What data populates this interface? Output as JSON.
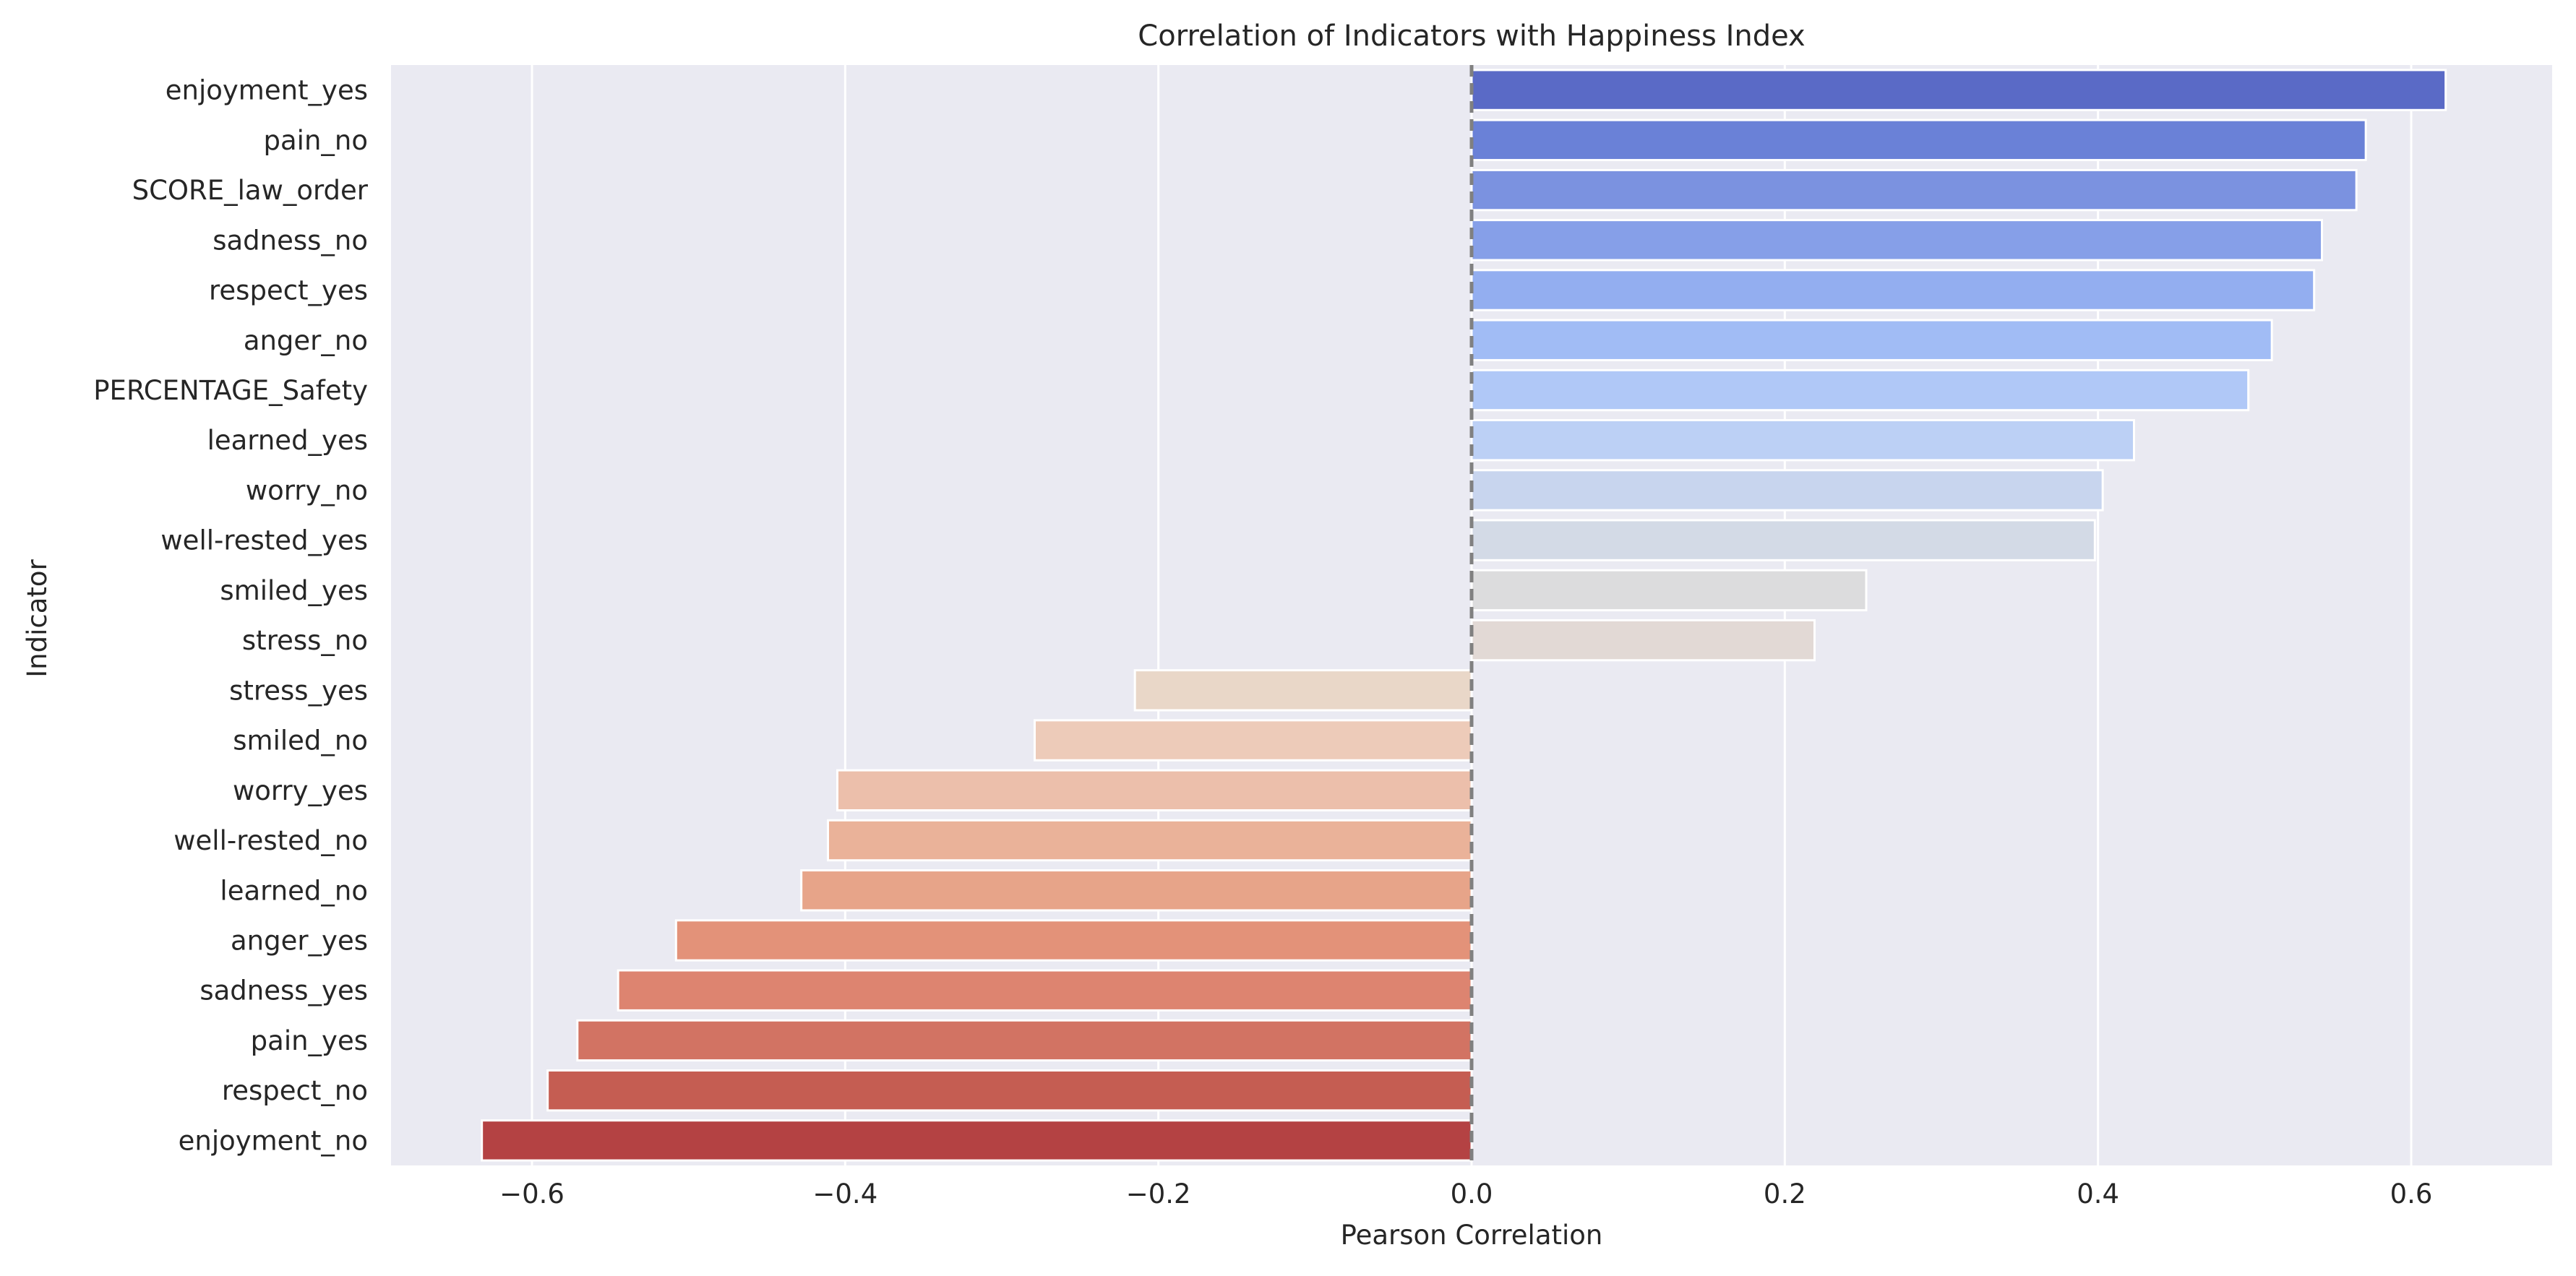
{
  "chart_data": {
    "type": "bar",
    "orientation": "horizontal",
    "title": "Correlation of Indicators with Happiness Index",
    "xlabel": "Pearson Correlation",
    "ylabel": "Indicator",
    "xlim": [
      -0.69,
      0.69
    ],
    "xticks": [
      -0.6,
      -0.4,
      -0.2,
      0.0,
      0.2,
      0.4,
      0.6
    ],
    "xtick_labels": [
      "−0.6",
      "−0.4",
      "−0.2",
      "0.0",
      "0.2",
      "0.4",
      "0.6"
    ],
    "grid": "vertical",
    "reference_line": {
      "x": 0.0,
      "style": "dashed",
      "color": "#808080"
    },
    "background_color": "#eaeaf2",
    "palette": "coolwarm",
    "categories": [
      "enjoyment_yes",
      "pain_no",
      "SCORE_law_order",
      "sadness_no",
      "respect_yes",
      "anger_no",
      "PERCENTAGE_Safety",
      "learned_yes",
      "worry_no",
      "well-rested_yes",
      "smiled_yes",
      "stress_no",
      "stress_yes",
      "smiled_no",
      "worry_yes",
      "well-rested_no",
      "learned_no",
      "anger_yes",
      "sadness_yes",
      "pain_yes",
      "respect_no",
      "enjoyment_no"
    ],
    "values": [
      0.622,
      0.571,
      0.565,
      0.543,
      0.538,
      0.511,
      0.496,
      0.423,
      0.403,
      0.398,
      0.252,
      0.219,
      -0.215,
      -0.279,
      -0.405,
      -0.411,
      -0.428,
      -0.508,
      -0.545,
      -0.571,
      -0.59,
      -0.632
    ],
    "colors": [
      "#5a6ac6",
      "#6a81d7",
      "#7b92e0",
      "#869fe8",
      "#93aef0",
      "#a1bcf5",
      "#b0c8f7",
      "#bcd0f5",
      "#c8d5ee",
      "#d3dae6",
      "#dcdcdd",
      "#e2d9d5",
      "#e9d7c8",
      "#edcbb9",
      "#ecbfab",
      "#eab299",
      "#e7a489",
      "#e39279",
      "#dd8470",
      "#d27363",
      "#c55d52",
      "#b44243"
    ]
  }
}
